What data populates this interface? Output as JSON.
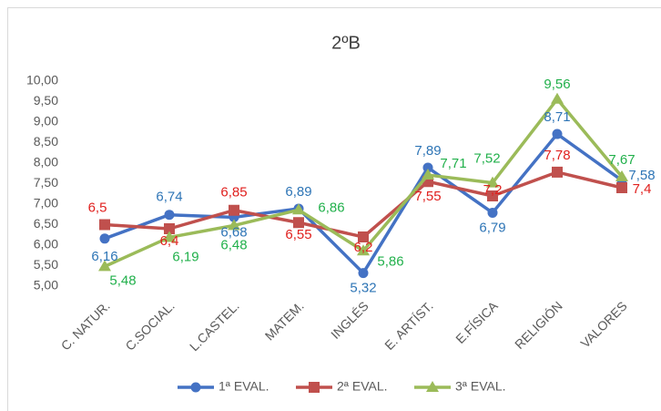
{
  "chart_data": {
    "type": "line",
    "title": "2ºB",
    "categories": [
      "C. NATUR.",
      "C.SOCIAL.",
      "L.CASTEL.",
      "MATEM.",
      "INGLÉS",
      "E. ARTÍST.",
      "E.FÍSICA",
      "RELIGIÓN",
      "VALORES"
    ],
    "series": [
      {
        "name": "1ª EVAL.",
        "color": "#4472c4",
        "marker": "circle",
        "values": [
          6.16,
          6.74,
          6.68,
          6.89,
          5.32,
          7.89,
          6.79,
          8.71,
          7.58
        ],
        "value_labels": [
          "6,16",
          "6,74",
          "6,68",
          "6,89",
          "5,32",
          "7,89",
          "6,79",
          "8,71",
          "7,58"
        ]
      },
      {
        "name": "2ª EVAL.",
        "color": "#c0504d",
        "marker": "square",
        "values": [
          6.5,
          6.4,
          6.85,
          6.55,
          6.2,
          7.55,
          7.2,
          7.78,
          7.4
        ],
        "value_labels": [
          "6,5",
          "6,4",
          "6,85",
          "6,55",
          "6,2",
          "7,55",
          "7,2",
          "7,78",
          "7,4"
        ]
      },
      {
        "name": "3ª EVAL.",
        "color": "#9bbb59",
        "marker": "triangle",
        "values": [
          5.48,
          6.19,
          6.48,
          6.86,
          5.86,
          7.71,
          7.52,
          9.56,
          7.67
        ],
        "value_labels": [
          "5,48",
          "6,19",
          "6,48",
          "6,86",
          "5,86",
          "7,71",
          "7,52",
          "9,56",
          "7,67"
        ]
      }
    ],
    "label_colors": [
      "#2e75b6",
      "#e0201e",
      "#21b04b"
    ],
    "ylim": [
      5,
      10
    ],
    "yticks": [
      {
        "value": 5,
        "label": "5,00"
      },
      {
        "value": 5.5,
        "label": "5,50"
      },
      {
        "value": 6,
        "label": "6,00"
      },
      {
        "value": 6.5,
        "label": "6,50"
      },
      {
        "value": 7,
        "label": "7,00"
      },
      {
        "value": 7.5,
        "label": "7,50"
      },
      {
        "value": 8,
        "label": "8,00"
      },
      {
        "value": 8.5,
        "label": "8,50"
      },
      {
        "value": 9,
        "label": "9,00"
      },
      {
        "value": 9.5,
        "label": "9,50"
      },
      {
        "value": 10,
        "label": "10,00"
      }
    ],
    "grid": false,
    "legend": "bottom"
  }
}
